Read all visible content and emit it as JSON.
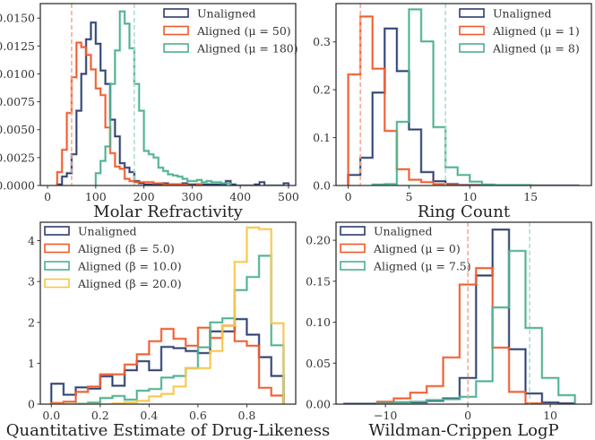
{
  "chart_data": [
    {
      "type": "histogram",
      "title": "",
      "xlabel": "Molar Refractivity",
      "ylabel": "",
      "xlim": [
        -15,
        515
      ],
      "ylim": [
        0,
        0.0163
      ],
      "xticks": [
        0,
        100,
        200,
        300,
        400,
        500
      ],
      "yticks": [
        0,
        0.0025,
        0.005,
        0.0075,
        0.01,
        0.0125,
        0.015
      ],
      "ytick_labels": [
        "0.0000",
        "0.0025",
        "0.0050",
        "0.0075",
        "0.0100",
        "0.0125",
        "0.0150"
      ],
      "legend_position": "top-right",
      "vlines": [
        {
          "x": 50,
          "color": "#f4a58a",
          "style": "dashed"
        },
        {
          "x": 180,
          "color": "#a8dcc9",
          "style": "dashed"
        }
      ],
      "series": [
        {
          "name": "Unaligned",
          "color": "#2c3e6e",
          "bin_start": 20,
          "bin_width": 10,
          "values": [
            0.0001,
            0.0008,
            0.0011,
            0.0028,
            0.0067,
            0.01,
            0.0131,
            0.0146,
            0.0127,
            0.0103,
            0.0091,
            0.0059,
            0.0044,
            0.002,
            0.0016,
            0.0012,
            0.0004,
            0.0002,
            0.0001,
            0.0001,
            0.0001,
            0.0001,
            0.0002,
            0.0001,
            0.0001,
            0.0001,
            0.0002,
            0.0001,
            0.0001,
            0.0001,
            0.0001,
            0.0001,
            0.0001,
            0.0001,
            0.0001,
            0.0004,
            0.0001,
            0,
            0,
            0,
            0,
            0.0001,
            0.0003,
            0,
            0,
            0,
            0,
            0.0002
          ]
        },
        {
          "name": "Aligned (μ = 50)",
          "color": "#f05a2a",
          "bin_start": 20,
          "bin_width": 10,
          "values": [
            0.0012,
            0.0032,
            0.0065,
            0.0097,
            0.0128,
            0.0124,
            0.0117,
            0.0104,
            0.0087,
            0.0081,
            0.0052,
            0.0029,
            0.0017,
            0.0015,
            0.0006,
            0.0004,
            0.0003,
            0.0003,
            0.0003,
            0.0003,
            0.0002,
            0.0002,
            0.0001,
            0.0001,
            0.0001,
            0.0001,
            0.0001,
            0,
            0,
            0.0001
          ]
        },
        {
          "name": "Aligned (μ = 180)",
          "color": "#4bb08e",
          "bin_start": 100,
          "bin_width": 10,
          "values": [
            0.0011,
            0.0022,
            0.0035,
            0.0091,
            0.0121,
            0.0156,
            0.0145,
            0.0123,
            0.0091,
            0.0067,
            0.0031,
            0.0028,
            0.0025,
            0.0016,
            0.0013,
            0.001,
            0.0009,
            0.0008,
            0.0006,
            0.0004,
            0.0004,
            0.0005,
            0.0003,
            0.0004,
            0.0003,
            0.0003,
            0.0002,
            0.0002
          ]
        }
      ]
    },
    {
      "type": "histogram",
      "title": "",
      "xlabel": "Ring Count",
      "ylabel": "",
      "xlim": [
        -1,
        20
      ],
      "ylim": [
        0,
        0.38
      ],
      "xticks": [
        0,
        5,
        10,
        15
      ],
      "yticks": [
        0,
        0.1,
        0.2,
        0.3
      ],
      "ytick_labels": [
        "0.0",
        "0.1",
        "0.2",
        "0.3"
      ],
      "legend_position": "top-right",
      "vlines": [
        {
          "x": 1,
          "color": "#f4a58a",
          "style": "dashed"
        },
        {
          "x": 8,
          "color": "#a8dcc9",
          "style": "dashed"
        }
      ],
      "series": [
        {
          "name": "Unaligned",
          "color": "#2c3e6e",
          "bin_start": 0,
          "bin_width": 1,
          "values": [
            0.022,
            0.058,
            0.194,
            0.328,
            0.239,
            0.117,
            0.028,
            0.009,
            0.003,
            0.001,
            0.001,
            0.001,
            0,
            0,
            0,
            0,
            0,
            0,
            0
          ]
        },
        {
          "name": "Aligned (μ = 1)",
          "color": "#f05a2a",
          "bin_start": 0,
          "bin_width": 1,
          "values": [
            0.232,
            0.353,
            0.244,
            0.114,
            0.034,
            0.012,
            0.007,
            0.003,
            0.001,
            0,
            0
          ]
        },
        {
          "name": "Aligned (μ = 8)",
          "color": "#4bb08e",
          "bin_start": 2,
          "bin_width": 1,
          "values": [
            0.002,
            0.003,
            0.133,
            0.368,
            0.301,
            0.122,
            0.038,
            0.022,
            0.008,
            0.002,
            0.001,
            0.001,
            0.001
          ]
        }
      ]
    },
    {
      "type": "histogram",
      "title": "",
      "xlabel": "Quantitative Estimate of Drug-Likeness",
      "ylabel": "",
      "xlim": [
        -0.045,
        1.0
      ],
      "ylim": [
        0,
        4.45
      ],
      "xticks": [
        0.0,
        0.2,
        0.4,
        0.6,
        0.8
      ],
      "xtick_labels": [
        "0.0",
        "0.2",
        "0.4",
        "0.6",
        "0.8"
      ],
      "yticks": [
        0,
        1,
        2,
        3,
        4
      ],
      "ytick_labels": [
        "0",
        "1",
        "2",
        "3",
        "4"
      ],
      "legend_position": "top-left",
      "vlines": [],
      "series": [
        {
          "name": "Unaligned",
          "color": "#2c3e6e",
          "bin_start": 0,
          "bin_width": 0.05,
          "values": [
            0.5,
            0.23,
            0.41,
            0.38,
            0.68,
            0.45,
            0.83,
            1.05,
            0.83,
            1.4,
            1.37,
            1.3,
            1.25,
            1.78,
            1.78,
            2.08,
            1.7,
            1.15,
            0.69
          ]
        },
        {
          "name": "Aligned (β = 5.0)",
          "color": "#f05a2a",
          "bin_start": 0,
          "bin_width": 0.05,
          "values": [
            0.03,
            0.06,
            0.3,
            0.43,
            0.73,
            0.73,
            0.97,
            1.22,
            1.54,
            1.84,
            1.6,
            1.43,
            1.87,
            1.62,
            1.92,
            1.54,
            1.43,
            0.4,
            0.21
          ]
        },
        {
          "name": "Aligned (β = 10.0)",
          "color": "#4bb08e",
          "bin_start": 0,
          "bin_width": 0.05,
          "values": [
            0,
            0,
            0.01,
            0.04,
            0.15,
            0.2,
            0.11,
            0.33,
            0.37,
            0.65,
            0.69,
            0.88,
            1.39,
            2.0,
            2.1,
            2.79,
            3.11,
            3.63,
            1.44
          ]
        },
        {
          "name": "Aligned (β = 20.0)",
          "color": "#f7c548",
          "bin_start": 0,
          "bin_width": 0.05,
          "values": [
            0,
            0,
            0,
            0,
            0,
            0.02,
            0.04,
            0.08,
            0.19,
            0.25,
            0.43,
            0.88,
            0.88,
            1.3,
            1.92,
            3.48,
            4.32,
            4.28,
            1.98
          ]
        }
      ]
    },
    {
      "type": "histogram",
      "title": "",
      "xlabel": "Wildman-Crippen LogP",
      "ylabel": "",
      "xlim": [
        -16,
        15
      ],
      "ylim": [
        0,
        0.222
      ],
      "xticks": [
        -10,
        0,
        10
      ],
      "xtick_labels": [
        "−10",
        "0",
        "10"
      ],
      "yticks": [
        0,
        0.05,
        0.1,
        0.15,
        0.2
      ],
      "ytick_labels": [
        "0.00",
        "0.05",
        "0.10",
        "0.15",
        "0.20"
      ],
      "legend_position": "top-left",
      "vlines": [
        {
          "x": 0,
          "color": "#f4a58a",
          "style": "dashed"
        },
        {
          "x": 7.5,
          "color": "#a8dcc9",
          "style": "dashed"
        }
      ],
      "series": [
        {
          "name": "Unaligned",
          "color": "#2c3e6e",
          "bin_start": -15,
          "bin_width": 2,
          "values": [
            0.0005,
            0.0005,
            0.001,
            0.002,
            0.002,
            0.004,
            0.007,
            0.032,
            0.157,
            0.213,
            0.067,
            0.013,
            0.002,
            0.001
          ]
        },
        {
          "name": "Aligned (μ = 0)",
          "color": "#f05a2a",
          "bin_start": -11,
          "bin_width": 2,
          "values": [
            0.003,
            0.007,
            0.014,
            0.022,
            0.057,
            0.146,
            0.166,
            0.069,
            0.015,
            0.001
          ]
        },
        {
          "name": "Aligned (μ = 7.5)",
          "color": "#4bb08e",
          "bin_start": -11,
          "bin_width": 2,
          "values": [
            0.001,
            0.002,
            0.003,
            0.005,
            0.006,
            0.009,
            0.028,
            0.118,
            0.187,
            0.093,
            0.032,
            0.011
          ]
        }
      ]
    }
  ]
}
